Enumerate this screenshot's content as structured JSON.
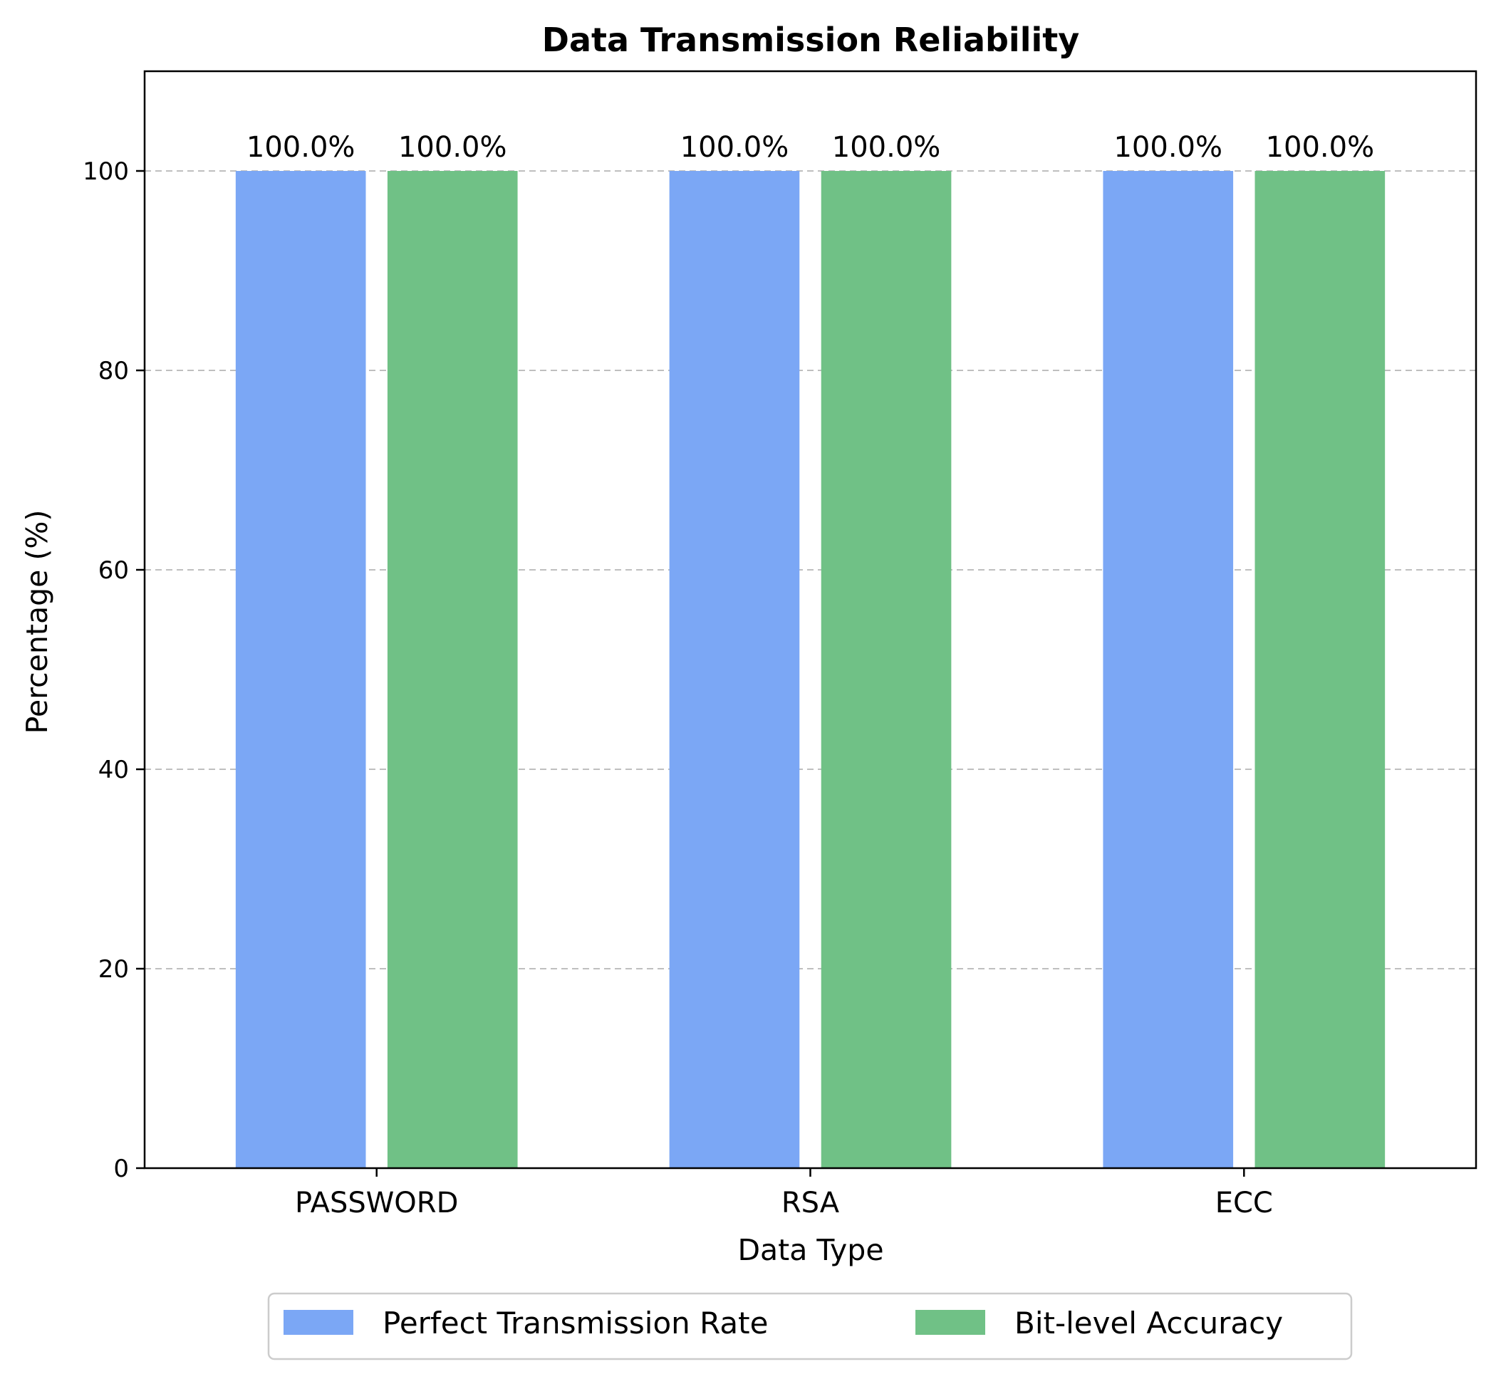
{
  "colors": {
    "series": [
      "#7ba7f5",
      "#70c186"
    ],
    "grid": "#bfbfbf",
    "axis": "#000000",
    "legend_border": "#cccccc"
  },
  "chart_data": {
    "type": "bar",
    "title": "Data Transmission Reliability",
    "xlabel": "Data Type",
    "ylabel": "Percentage (%)",
    "categories": [
      "PASSWORD",
      "RSA",
      "ECC"
    ],
    "series": [
      {
        "name": "Perfect Transmission Rate",
        "values": [
          100.0,
          100.0,
          100.0
        ],
        "labels": [
          "100.0%",
          "100.0%",
          "100.0%"
        ]
      },
      {
        "name": "Bit-level Accuracy",
        "values": [
          100.0,
          100.0,
          100.0
        ],
        "labels": [
          "100.0%",
          "100.0%",
          "100.0%"
        ]
      }
    ],
    "ylim": [
      0,
      110
    ],
    "yticks": [
      0,
      20,
      40,
      60,
      80,
      100
    ],
    "yticklabels": [
      "0",
      "20",
      "40",
      "60",
      "80",
      "100"
    ],
    "grid": "y-dashed",
    "legend": "below"
  }
}
